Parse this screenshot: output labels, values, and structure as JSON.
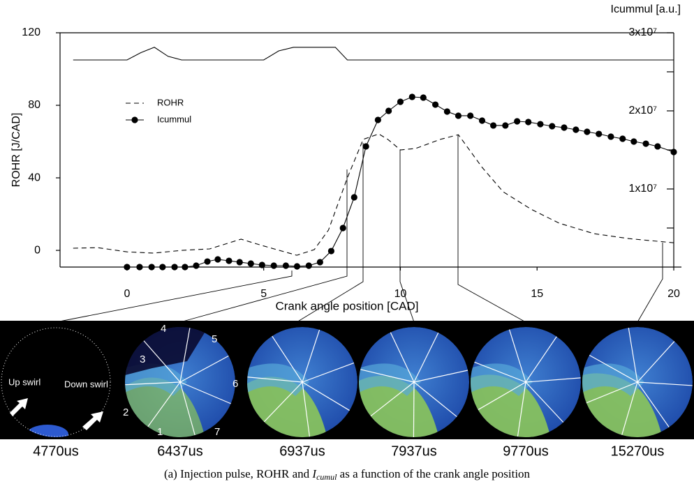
{
  "chart_data": {
    "type": "line",
    "x_label": "Crank angle position [CAD]",
    "y_label": "ROHR [J/CAD]",
    "y2_label": "Icummul [a.u.]",
    "xlim": [
      -2.45,
      20
    ],
    "xticks": [
      0,
      5,
      10,
      15,
      20
    ],
    "ylim": [
      -9.2,
      120
    ],
    "yticks": [
      0,
      40,
      80,
      120
    ],
    "y2lim": [
      0,
      30000000
    ],
    "y2ticks": [
      {
        "value": 10000000,
        "label": "1x10⁷"
      },
      {
        "value": 20000000,
        "label": "2x10⁷"
      },
      {
        "value": 30000000,
        "label": "3x10⁷"
      }
    ],
    "y2minor_ticks": [
      5000000,
      15000000,
      25000000
    ],
    "grid": false,
    "legend": "upper left",
    "series": [
      {
        "name": "ROHR",
        "color": "#000000",
        "line_style": "dashed",
        "x": [
          -1.97,
          -1.07,
          0,
          0.97,
          2.0,
          3.02,
          4.17,
          4.94,
          6.21,
          6.85,
          7.37,
          8.06,
          8.64,
          9.21,
          9.54,
          10.0,
          10.56,
          11.46,
          12.12,
          12.99,
          13.76,
          14.78,
          15.81,
          17.08,
          18.36,
          20.0
        ],
        "values": [
          1.2,
          1.5,
          -0.8,
          -1.5,
          0,
          0.8,
          6.2,
          2.7,
          -2.7,
          0.4,
          11.2,
          40,
          61.2,
          64.2,
          61.2,
          55.4,
          56.2,
          61.2,
          63.8,
          45.8,
          32.3,
          22.7,
          15,
          9.2,
          6.5,
          4.2
        ]
      },
      {
        "name": "Icummul",
        "color": "#000000",
        "line_style": "solid",
        "marker": "circle",
        "axis": "y2",
        "x": [
          0,
          0.46,
          0.9,
          1.3,
          1.74,
          2.12,
          2.53,
          2.94,
          3.32,
          3.73,
          4.12,
          4.53,
          4.94,
          5.37,
          5.81,
          6.22,
          6.65,
          7.06,
          7.47,
          7.9,
          8.31,
          8.74,
          9.18,
          9.57,
          10.0,
          10.43,
          10.84,
          11.28,
          11.71,
          12.12,
          12.56,
          12.99,
          13.4,
          13.84,
          14.27,
          14.68,
          15.12,
          15.55,
          15.99,
          16.42,
          16.83,
          17.26,
          17.7,
          18.13,
          18.54,
          18.98,
          19.41,
          20.0
        ],
        "values": [
          0,
          0,
          0,
          0,
          0,
          0,
          180000,
          710000,
          980000,
          800000,
          630000,
          450000,
          270000,
          180000,
          180000,
          90000,
          180000,
          630000,
          2050000,
          5000000,
          8930000,
          15450000,
          18840000,
          20000000,
          21160000,
          21790000,
          21700000,
          20800000,
          19910000,
          19380000,
          19380000,
          18750000,
          18130000,
          18130000,
          18660000,
          18570000,
          18300000,
          18040000,
          17860000,
          17590000,
          17320000,
          17050000,
          16700000,
          16430000,
          16070000,
          15800000,
          15450000,
          14730000
        ]
      },
      {
        "color": "#000000",
        "line_style": "solid",
        "x": [
          -1.97,
          0,
          0.5,
          1,
          1.5,
          2,
          5,
          5.55,
          6.09,
          7.62,
          8.06,
          20
        ],
        "values": [
          105,
          105,
          109,
          112,
          107,
          105,
          105,
          110,
          112,
          112,
          105,
          105
        ]
      }
    ]
  },
  "image_strip": {
    "times": [
      "4770us",
      "6437us",
      "6937us",
      "7937us",
      "9770us",
      "15270us"
    ],
    "up_swirl": "Up swirl",
    "down_swirl": "Down swirl",
    "nozzles": [
      "1",
      "2",
      "3",
      "4",
      "5",
      "6",
      "7"
    ]
  },
  "caption": {
    "prefix": "(a) Injection pulse, ROHR and ",
    "symbol": "I",
    "subscript": "cumul",
    "suffix": " as a function of the crank angle position"
  }
}
